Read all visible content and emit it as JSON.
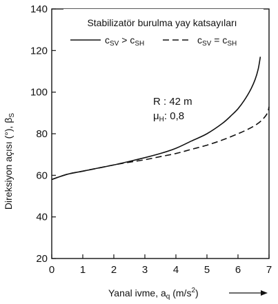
{
  "chart_data": {
    "type": "line",
    "xlabel_parts": {
      "main": "Yanal ivme, a",
      "sub": "q",
      "unit_open": " (m/s",
      "sup": "2",
      "unit_close": ")"
    },
    "ylabel_parts": {
      "main": "Direksiyon açısı (°), β",
      "sub": "S"
    },
    "xlim": [
      0,
      7
    ],
    "ylim": [
      20,
      140
    ],
    "xticks": [
      "0",
      "1",
      "2",
      "3",
      "4",
      "5",
      "6",
      "7"
    ],
    "yticks": [
      "20",
      "40",
      "60",
      "80",
      "100",
      "120",
      "140"
    ],
    "grid": false,
    "legend": {
      "title": "Stabilizatör burulma yay katsayıları",
      "placement": "top",
      "entries": [
        {
          "c": "c",
          "s1": "SV",
          "op": " > ",
          "c2": "c",
          "s2": "SH"
        },
        {
          "c": "c",
          "s1": "SV",
          "op": " = ",
          "c2": "c",
          "s2": "SH"
        }
      ]
    },
    "annotation": {
      "line1": "R : 42 m",
      "mu": "μ",
      "mu_sub": "H",
      "mu_val": ": 0,8"
    },
    "series": [
      {
        "style": "solid",
        "x": [
          0,
          0.5,
          1,
          1.5,
          2,
          2.5,
          3,
          3.5,
          4,
          4.5,
          5,
          5.5,
          5.8,
          6,
          6.2,
          6.4,
          6.55,
          6.65,
          6.72
        ],
        "y": [
          58,
          60.5,
          62,
          63.5,
          65,
          66.7,
          68.5,
          70.5,
          73,
          76.5,
          80,
          85,
          89,
          92,
          96,
          101,
          106,
          111,
          117
        ]
      },
      {
        "style": "dashed",
        "x": [
          0,
          0.5,
          1,
          1.5,
          2,
          2.5,
          3,
          3.5,
          4,
          4.5,
          5,
          5.5,
          6,
          6.3,
          6.6,
          6.8,
          6.95,
          7
        ],
        "y": [
          58,
          60.5,
          62,
          63.5,
          65,
          66.3,
          67.5,
          69,
          70.5,
          72.5,
          74.5,
          77,
          80,
          82,
          84.5,
          87,
          90,
          93
        ]
      }
    ]
  }
}
